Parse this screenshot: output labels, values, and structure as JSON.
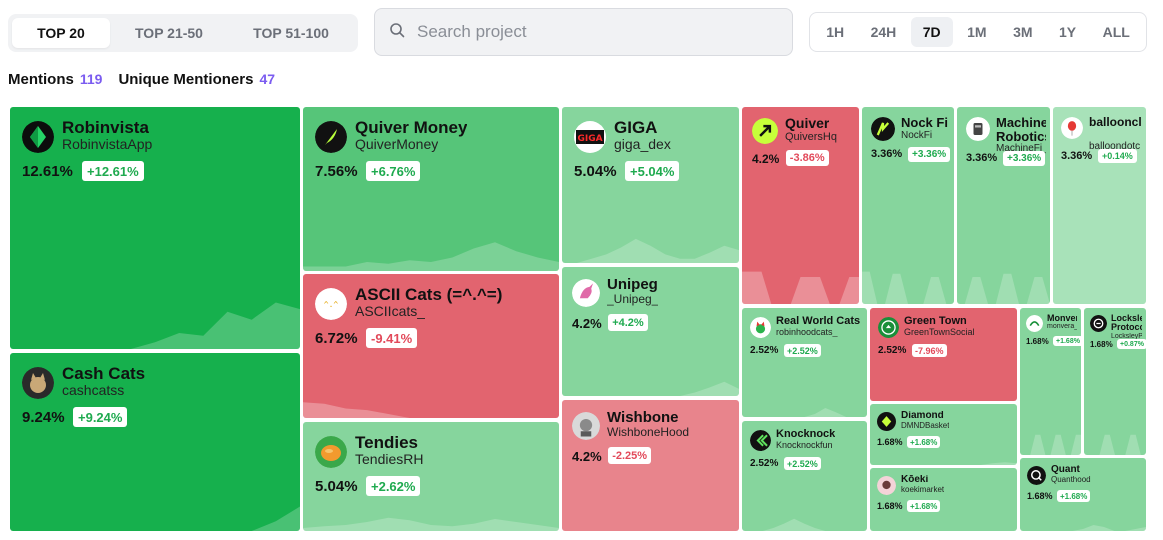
{
  "tabs": [
    {
      "label": "TOP 20",
      "active": true
    },
    {
      "label": "TOP 21-50",
      "active": false
    },
    {
      "label": "TOP 51-100",
      "active": false
    }
  ],
  "search": {
    "placeholder": "Search project",
    "value": ""
  },
  "time_filters": [
    {
      "label": "1H",
      "active": false
    },
    {
      "label": "24H",
      "active": false
    },
    {
      "label": "7D",
      "active": true
    },
    {
      "label": "1M",
      "active": false
    },
    {
      "label": "3M",
      "active": false
    },
    {
      "label": "1Y",
      "active": false
    },
    {
      "label": "ALL",
      "active": false
    }
  ],
  "stats": {
    "mentions_label": "Mentions",
    "mentions_value": "119",
    "unique_label": "Unique Mentioners",
    "unique_value": "47"
  },
  "colors": {
    "green_strong": "#16b04d",
    "green_mid": "#56c579",
    "green_light": "#86d59d",
    "green_pale": "#a8e2b9",
    "red_strong": "#e2646f",
    "red_light": "#e8848c",
    "badge_up": "#1faa4f",
    "badge_down": "#e2495a"
  },
  "tiles": [
    {
      "name": "Robinvista",
      "handle": "RobinvistaApp",
      "percent": "12.61%",
      "change": "+12.61%",
      "direction": "up",
      "icon": "green-diamond-icon"
    },
    {
      "name": "Cash Cats",
      "handle": "cashcatss",
      "percent": "9.24%",
      "change": "+9.24%",
      "direction": "up",
      "icon": "cat-avatar-icon"
    },
    {
      "name": "Quiver Money",
      "handle": "QuiverMoney",
      "percent": "7.56%",
      "change": "+6.76%",
      "direction": "up",
      "icon": "feather-icon"
    },
    {
      "name": "ASCII Cats (=^.^=)",
      "handle": "ASCIIcats_",
      "percent": "6.72%",
      "change": "-9.41%",
      "direction": "down",
      "icon": "ascii-cat-icon"
    },
    {
      "name": "Tendies",
      "handle": "TendiesRH",
      "percent": "5.04%",
      "change": "+2.62%",
      "direction": "up",
      "icon": "tendies-icon"
    },
    {
      "name": "GIGA",
      "handle": "giga_dex",
      "percent": "5.04%",
      "change": "+5.04%",
      "direction": "up",
      "icon": "giga-logo-icon"
    },
    {
      "name": "Unipeg",
      "handle": "_Unipeg_",
      "percent": "4.2%",
      "change": "+4.2%",
      "direction": "up",
      "icon": "unicorn-icon"
    },
    {
      "name": "Wishbone",
      "handle": "WishboneHood",
      "percent": "4.2%",
      "change": "-2.25%",
      "direction": "down",
      "icon": "wishbone-avatar-icon"
    },
    {
      "name": "Quiver",
      "handle": "QuiversHq",
      "percent": "4.2%",
      "change": "-3.86%",
      "direction": "down",
      "icon": "quiver-icon"
    },
    {
      "name": "Nock Fi",
      "handle": "NockFi",
      "percent": "3.36%",
      "change": "+3.36%",
      "direction": "up",
      "icon": "nock-icon"
    },
    {
      "name": "MachineFi Robotics",
      "handle": "MachineFi_",
      "percent": "3.36%",
      "change": "+3.36%",
      "direction": "up",
      "icon": "robot-icon"
    },
    {
      "name": "balloonclu",
      "handle": "balloondotc",
      "percent": "3.36%",
      "change": "+0.14%",
      "direction": "up",
      "icon": "balloon-icon"
    },
    {
      "name": "Real World Cats",
      "handle": "robinhoodcats_",
      "percent": "2.52%",
      "change": "+2.52%",
      "direction": "up",
      "icon": "cat-icon"
    },
    {
      "name": "Knocknock",
      "handle": "Knocknockfun",
      "percent": "2.52%",
      "change": "+2.52%",
      "direction": "up",
      "icon": "knock-icon"
    },
    {
      "name": "Green Town",
      "handle": "GreenTownSocial",
      "percent": "2.52%",
      "change": "-7.96%",
      "direction": "down",
      "icon": "greentown-icon"
    },
    {
      "name": "Diamond",
      "handle": "DMNDBasket",
      "percent": "1.68%",
      "change": "+1.68%",
      "direction": "up",
      "icon": "diamond-icon"
    },
    {
      "name": "Kōeki",
      "handle": "koekimarket",
      "percent": "1.68%",
      "change": "+1.68%",
      "direction": "up",
      "icon": "koeki-icon"
    },
    {
      "name": "Monvera",
      "handle": "monvera_",
      "percent": "1.68%",
      "change": "+1.68%",
      "direction": "up",
      "icon": "monvera-icon"
    },
    {
      "name": "Locksley Protocol",
      "handle": "LocksleyPro",
      "percent": "1.68%",
      "change": "+0.87%",
      "direction": "up",
      "icon": "locksley-icon"
    },
    {
      "name": "Quant",
      "handle": "Quanthood",
      "percent": "1.68%",
      "change": "+1.68%",
      "direction": "up",
      "icon": "quant-icon"
    }
  ]
}
